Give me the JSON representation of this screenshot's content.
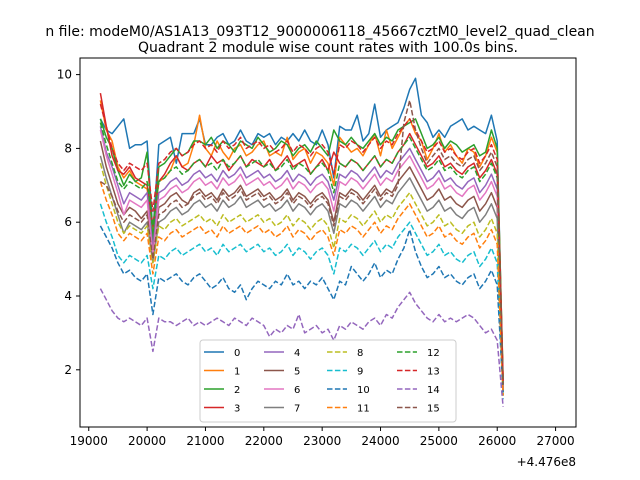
{
  "suptitle": "n file: modeM0/AS1A13_093T12_9000006118_45667cztM0_level2_quad_clean",
  "chart_data": {
    "type": "line",
    "title": "Quadrant 2 module wise count rates with 100.0s bins.",
    "xlabel": "",
    "ylabel": "",
    "x_offset_label": "+4.476e8",
    "x_start": 19200,
    "x_step": 100,
    "xlim": [
      18850,
      27350
    ],
    "ylim": [
      0.45,
      10.45
    ],
    "xticks": [
      19000,
      20000,
      21000,
      22000,
      23000,
      24000,
      25000,
      26000,
      27000
    ],
    "yticks": [
      2,
      4,
      6,
      8,
      10
    ],
    "grid": false,
    "legend": {
      "placement": "lower center",
      "ncol": 4
    },
    "series": [
      {
        "name": "0",
        "color": "#1f77b4",
        "dash": "solid",
        "values": [
          8.8,
          8.5,
          8.4,
          8.6,
          8.8,
          8.0,
          8.1,
          8.1,
          8.2,
          5.7,
          8.1,
          8.2,
          8.3,
          7.6,
          8.4,
          8.4,
          8.4,
          8.8,
          8.1,
          8.1,
          8.3,
          8.4,
          8.1,
          8.2,
          8.5,
          8.2,
          8.1,
          8.4,
          8.3,
          8.4,
          8.1,
          8.3,
          8.2,
          8.4,
          8.2,
          8.5,
          8.2,
          8.1,
          8.5,
          8.1,
          7.2,
          8.6,
          8.5,
          8.5,
          8.9,
          8.2,
          8.4,
          9.2,
          8.3,
          8.5,
          8.6,
          8.7,
          9.1,
          9.6,
          9.9,
          8.9,
          8.7,
          8.3,
          8.5,
          8.3,
          8.6,
          8.7,
          8.8,
          8.5,
          8.6,
          8.5,
          8.4,
          8.9,
          8.2,
          1.6
        ]
      },
      {
        "name": "1",
        "color": "#ff7f0e",
        "dash": "solid",
        "values": [
          9.3,
          8.5,
          8.2,
          7.5,
          7.2,
          7.4,
          7.1,
          7.0,
          6.9,
          5.8,
          7.1,
          7.2,
          7.4,
          7.8,
          7.5,
          7.6,
          8.1,
          8.9,
          8.0,
          7.8,
          8.2,
          7.9,
          7.7,
          8.0,
          8.1,
          7.8,
          7.9,
          8.1,
          8.2,
          7.8,
          7.9,
          7.8,
          8.3,
          7.7,
          7.9,
          8.0,
          7.6,
          7.9,
          7.8,
          7.6,
          7.0,
          8.3,
          8.1,
          7.9,
          8.0,
          7.8,
          8.1,
          8.4,
          7.8,
          8.5,
          8.0,
          8.3,
          8.6,
          8.8,
          8.4,
          8.2,
          7.7,
          8.0,
          8.4,
          7.9,
          8.1,
          7.8,
          7.6,
          8.0,
          7.9,
          7.5,
          7.8,
          8.3,
          7.9,
          1.8
        ]
      },
      {
        "name": "2",
        "color": "#2ca02c",
        "dash": "solid",
        "values": [
          8.8,
          8.3,
          8.0,
          7.4,
          7.0,
          7.3,
          7.1,
          7.2,
          7.9,
          5.5,
          7.5,
          7.6,
          7.8,
          8.0,
          7.8,
          7.9,
          8.2,
          8.2,
          8.1,
          8.3,
          8.0,
          8.2,
          8.1,
          7.9,
          8.2,
          8.1,
          8.0,
          8.3,
          8.1,
          7.9,
          8.0,
          8.2,
          8.1,
          7.8,
          8.0,
          8.1,
          7.9,
          8.2,
          8.0,
          7.8,
          8.5,
          8.2,
          8.1,
          8.3,
          8.1,
          8.0,
          8.2,
          8.4,
          8.1,
          8.3,
          8.2,
          8.5,
          8.6,
          8.7,
          8.8,
          8.4,
          8.0,
          8.1,
          8.3,
          8.0,
          8.2,
          8.1,
          7.9,
          8.0,
          8.1,
          7.8,
          7.9,
          8.5,
          8.0,
          1.7
        ]
      },
      {
        "name": "3",
        "color": "#d62728",
        "dash": "solid",
        "values": [
          9.5,
          8.6,
          7.8,
          7.4,
          7.3,
          7.5,
          7.2,
          7.1,
          7.0,
          5.9,
          7.1,
          7.3,
          7.6,
          7.8,
          7.5,
          7.4,
          7.6,
          7.7,
          7.5,
          7.8,
          7.6,
          7.7,
          7.4,
          7.6,
          7.8,
          7.5,
          7.7,
          7.6,
          7.5,
          7.7,
          7.4,
          7.6,
          7.8,
          7.5,
          7.6,
          7.7,
          7.3,
          7.5,
          7.7,
          7.4,
          7.9,
          7.6,
          7.5,
          7.7,
          7.6,
          7.4,
          7.6,
          7.8,
          7.5,
          7.7,
          7.6,
          7.9,
          8.1,
          8.4,
          8.1,
          7.8,
          7.5,
          7.6,
          7.8,
          7.5,
          7.6,
          7.4,
          7.3,
          7.5,
          7.6,
          7.2,
          7.4,
          7.7,
          7.3,
          1.6
        ]
      },
      {
        "name": "4",
        "color": "#9467bd",
        "dash": "solid",
        "values": [
          8.6,
          7.9,
          7.5,
          7.0,
          6.5,
          6.8,
          6.7,
          6.6,
          6.8,
          5.3,
          6.8,
          6.9,
          7.1,
          7.2,
          7.0,
          7.1,
          7.3,
          7.4,
          7.2,
          7.3,
          7.1,
          7.4,
          7.2,
          7.3,
          7.5,
          7.2,
          7.3,
          7.4,
          7.2,
          7.3,
          7.1,
          7.2,
          7.4,
          7.1,
          7.3,
          7.2,
          7.0,
          7.2,
          7.3,
          7.1,
          6.6,
          7.3,
          7.2,
          7.4,
          7.3,
          7.1,
          7.3,
          7.5,
          7.2,
          7.4,
          7.3,
          7.6,
          7.8,
          8.0,
          7.7,
          7.4,
          7.1,
          7.2,
          7.4,
          7.1,
          7.2,
          7.0,
          6.9,
          7.1,
          7.2,
          6.8,
          7.0,
          7.3,
          6.9,
          1.5
        ]
      },
      {
        "name": "5",
        "color": "#8c564b",
        "dash": "solid",
        "values": [
          8.2,
          7.5,
          7.0,
          6.5,
          6.2,
          6.4,
          6.3,
          6.1,
          6.3,
          5.2,
          6.4,
          6.5,
          6.7,
          6.8,
          6.6,
          6.5,
          6.8,
          6.9,
          6.7,
          6.8,
          6.6,
          6.9,
          6.7,
          6.8,
          7.0,
          6.7,
          6.8,
          6.9,
          6.7,
          6.8,
          6.6,
          6.7,
          6.9,
          6.6,
          6.8,
          6.7,
          6.5,
          6.7,
          6.8,
          6.6,
          6.0,
          6.8,
          6.7,
          6.9,
          6.8,
          6.6,
          6.8,
          7.0,
          6.7,
          6.9,
          6.8,
          7.1,
          7.3,
          7.5,
          7.2,
          6.9,
          6.6,
          6.7,
          6.9,
          6.6,
          6.7,
          6.5,
          6.4,
          6.6,
          6.7,
          6.3,
          6.5,
          6.8,
          6.4,
          1.4
        ]
      },
      {
        "name": "6",
        "color": "#e377c2",
        "dash": "solid",
        "values": [
          8.5,
          7.8,
          7.3,
          6.8,
          6.2,
          6.6,
          6.5,
          6.4,
          6.6,
          5.1,
          6.6,
          6.7,
          6.9,
          7.0,
          6.8,
          6.9,
          7.1,
          7.2,
          7.0,
          7.1,
          6.9,
          7.2,
          7.0,
          7.1,
          7.3,
          7.0,
          7.1,
          7.2,
          7.0,
          7.1,
          6.9,
          7.0,
          7.2,
          6.9,
          7.1,
          7.0,
          6.8,
          7.0,
          7.1,
          6.9,
          6.3,
          7.1,
          7.0,
          7.2,
          7.1,
          6.9,
          7.1,
          7.3,
          7.0,
          7.2,
          7.1,
          7.4,
          7.6,
          7.8,
          7.5,
          7.2,
          6.9,
          7.0,
          7.2,
          6.9,
          7.0,
          6.8,
          6.7,
          6.9,
          7.0,
          6.6,
          6.8,
          7.1,
          6.7,
          1.5
        ]
      },
      {
        "name": "7",
        "color": "#7f7f7f",
        "dash": "solid",
        "values": [
          7.8,
          7.2,
          6.7,
          6.2,
          5.7,
          6.0,
          5.9,
          5.8,
          6.0,
          4.9,
          6.0,
          6.1,
          6.3,
          6.4,
          6.2,
          6.3,
          6.5,
          6.6,
          6.4,
          6.5,
          6.3,
          6.6,
          6.4,
          6.5,
          6.7,
          6.4,
          6.5,
          6.6,
          6.4,
          6.5,
          6.3,
          6.4,
          6.6,
          6.3,
          6.5,
          6.4,
          6.2,
          6.4,
          6.5,
          6.3,
          5.7,
          6.5,
          6.4,
          6.6,
          6.5,
          6.3,
          6.5,
          6.7,
          6.4,
          6.6,
          6.5,
          6.8,
          7.0,
          7.2,
          6.9,
          6.6,
          6.3,
          6.4,
          6.6,
          6.3,
          6.4,
          6.2,
          6.1,
          6.3,
          6.4,
          6.0,
          6.2,
          6.5,
          6.1,
          1.4
        ]
      },
      {
        "name": "8",
        "color": "#bcbd22",
        "dash": "dashed",
        "values": [
          7.6,
          7.0,
          6.5,
          6.0,
          5.7,
          5.9,
          5.8,
          5.7,
          5.9,
          4.9,
          5.9,
          5.8,
          6.0,
          6.1,
          5.9,
          6.0,
          6.1,
          6.2,
          6.0,
          6.1,
          5.9,
          6.2,
          6.0,
          6.1,
          6.2,
          6.0,
          6.1,
          6.2,
          6.0,
          6.1,
          5.9,
          6.0,
          6.2,
          5.9,
          6.1,
          6.0,
          5.8,
          6.0,
          6.1,
          5.9,
          5.3,
          6.1,
          6.0,
          6.2,
          6.1,
          5.9,
          6.1,
          6.3,
          6.0,
          6.2,
          6.1,
          6.4,
          6.6,
          6.8,
          6.5,
          6.2,
          5.9,
          6.0,
          6.2,
          5.9,
          6.0,
          5.8,
          5.7,
          5.9,
          6.0,
          5.6,
          5.8,
          6.1,
          5.7,
          1.3
        ]
      },
      {
        "name": "9",
        "color": "#17becf",
        "dash": "dashed",
        "values": [
          6.5,
          6.0,
          5.6,
          5.1,
          4.9,
          5.1,
          5.0,
          4.9,
          5.1,
          4.2,
          5.1,
          5.0,
          5.2,
          5.3,
          5.1,
          5.2,
          5.3,
          5.4,
          5.2,
          5.3,
          5.1,
          5.4,
          5.2,
          5.3,
          5.4,
          5.2,
          5.3,
          5.4,
          5.2,
          5.3,
          5.1,
          5.2,
          5.4,
          5.1,
          5.3,
          5.2,
          5.0,
          5.2,
          5.3,
          5.1,
          4.6,
          5.3,
          5.2,
          5.4,
          5.3,
          5.1,
          5.3,
          5.5,
          5.2,
          5.4,
          5.3,
          5.6,
          5.8,
          6.0,
          5.7,
          5.4,
          5.1,
          5.2,
          5.4,
          5.1,
          5.2,
          5.0,
          4.9,
          5.1,
          5.2,
          4.8,
          5.0,
          5.3,
          4.9,
          1.2
        ]
      },
      {
        "name": "10",
        "color": "#1f77b4",
        "dash": "dashed",
        "values": [
          5.9,
          5.6,
          5.3,
          4.9,
          4.6,
          4.7,
          4.5,
          4.4,
          4.6,
          3.5,
          4.5,
          4.4,
          4.5,
          4.6,
          4.4,
          4.3,
          4.5,
          4.6,
          4.4,
          4.2,
          4.3,
          4.5,
          4.2,
          4.1,
          4.3,
          3.9,
          4.2,
          4.4,
          4.3,
          4.2,
          4.4,
          4.3,
          4.6,
          4.3,
          4.4,
          4.2,
          4.4,
          4.3,
          4.5,
          4.2,
          3.9,
          4.4,
          4.3,
          4.8,
          4.6,
          4.4,
          4.6,
          4.9,
          4.5,
          4.7,
          4.6,
          5.0,
          5.3,
          5.8,
          5.2,
          4.8,
          4.5,
          4.6,
          4.8,
          4.5,
          4.6,
          4.4,
          4.3,
          4.5,
          4.6,
          4.2,
          4.4,
          4.7,
          4.3,
          1.4
        ]
      },
      {
        "name": "11",
        "color": "#ff7f0e",
        "dash": "dashed",
        "values": [
          7.1,
          6.6,
          6.2,
          5.7,
          5.5,
          5.7,
          5.6,
          5.5,
          5.7,
          4.6,
          5.6,
          5.5,
          5.7,
          5.8,
          5.6,
          5.7,
          5.8,
          5.9,
          5.7,
          5.8,
          5.6,
          5.9,
          5.7,
          5.8,
          5.9,
          5.7,
          5.8,
          5.9,
          5.7,
          5.8,
          5.6,
          5.7,
          5.9,
          5.6,
          5.8,
          5.7,
          5.5,
          5.7,
          5.8,
          5.6,
          5.1,
          5.8,
          5.7,
          5.9,
          5.8,
          5.6,
          5.8,
          6.0,
          5.7,
          5.9,
          5.8,
          6.1,
          6.3,
          6.5,
          6.2,
          5.9,
          5.6,
          5.7,
          5.9,
          5.6,
          5.7,
          5.5,
          5.4,
          5.6,
          5.7,
          5.3,
          5.5,
          5.8,
          5.4,
          1.3
        ]
      },
      {
        "name": "12",
        "color": "#2ca02c",
        "dash": "dashed",
        "values": [
          8.7,
          8.1,
          7.6,
          7.1,
          6.9,
          7.1,
          7.0,
          6.9,
          7.1,
          5.9,
          7.1,
          7.2,
          7.4,
          7.5,
          7.3,
          7.4,
          7.6,
          7.7,
          7.5,
          7.6,
          7.4,
          7.7,
          7.5,
          7.6,
          7.8,
          7.5,
          7.6,
          7.7,
          7.5,
          7.6,
          7.4,
          7.5,
          7.7,
          7.4,
          7.6,
          7.5,
          7.3,
          7.5,
          7.6,
          7.4,
          6.8,
          7.6,
          7.5,
          7.7,
          7.6,
          7.4,
          7.6,
          7.8,
          7.5,
          7.7,
          7.6,
          7.9,
          8.1,
          8.3,
          8.0,
          7.7,
          7.4,
          7.5,
          7.7,
          7.4,
          7.5,
          7.3,
          7.2,
          7.4,
          7.5,
          7.1,
          7.3,
          7.6,
          7.2,
          1.6
        ]
      },
      {
        "name": "13",
        "color": "#d62728",
        "dash": "dashed",
        "values": [
          9.2,
          8.6,
          8.0,
          7.6,
          7.4,
          7.6,
          7.5,
          7.4,
          7.6,
          6.3,
          7.6,
          7.7,
          7.9,
          8.0,
          7.8,
          7.9,
          8.1,
          8.2,
          8.0,
          8.1,
          7.9,
          8.2,
          8.0,
          8.1,
          8.3,
          8.0,
          8.1,
          8.2,
          8.0,
          8.1,
          7.9,
          8.0,
          8.2,
          7.9,
          8.1,
          8.0,
          7.8,
          8.0,
          8.1,
          7.9,
          7.3,
          8.1,
          8.0,
          8.2,
          8.1,
          7.9,
          8.1,
          8.3,
          8.0,
          8.2,
          8.1,
          8.4,
          8.6,
          8.8,
          8.5,
          8.2,
          7.9,
          8.0,
          8.2,
          7.9,
          8.0,
          7.8,
          7.7,
          7.9,
          8.0,
          7.6,
          7.8,
          8.1,
          7.7,
          1.7
        ]
      },
      {
        "name": "14",
        "color": "#9467bd",
        "dash": "dashed",
        "values": [
          4.2,
          3.9,
          3.6,
          3.4,
          3.3,
          3.4,
          3.3,
          3.2,
          3.4,
          2.5,
          3.4,
          3.3,
          3.3,
          3.2,
          3.3,
          3.4,
          3.2,
          3.3,
          3.2,
          3.3,
          3.4,
          3.3,
          3.2,
          3.4,
          3.3,
          3.2,
          3.4,
          3.3,
          3.2,
          2.9,
          3.1,
          3.0,
          3.2,
          3.1,
          3.5,
          3.0,
          3.1,
          3.2,
          3.0,
          3.1,
          2.8,
          3.2,
          3.1,
          3.3,
          3.2,
          3.1,
          3.3,
          3.4,
          3.2,
          3.5,
          3.4,
          3.7,
          3.9,
          4.1,
          3.8,
          3.6,
          3.4,
          3.3,
          3.5,
          3.3,
          3.4,
          3.3,
          3.4,
          3.5,
          3.4,
          3.2,
          3.0,
          3.1,
          2.8,
          1.0
        ]
      },
      {
        "name": "15",
        "color": "#8c564b",
        "dash": "dashed",
        "values": [
          7.1,
          7.0,
          6.7,
          6.3,
          6.0,
          6.2,
          6.1,
          6.0,
          6.2,
          5.0,
          6.2,
          6.3,
          6.5,
          6.6,
          6.4,
          6.5,
          6.7,
          6.8,
          6.6,
          6.7,
          6.5,
          6.8,
          6.6,
          6.7,
          6.9,
          6.6,
          6.7,
          6.8,
          6.6,
          6.7,
          6.5,
          6.6,
          6.8,
          6.5,
          6.7,
          6.6,
          6.4,
          6.6,
          6.7,
          6.5,
          5.9,
          6.7,
          6.6,
          6.8,
          6.7,
          6.5,
          6.7,
          6.9,
          6.6,
          6.8,
          6.7,
          7.0,
          8.7,
          9.3,
          8.5,
          8.0,
          7.6,
          7.8,
          8.0,
          7.7,
          7.8,
          7.6,
          7.5,
          7.7,
          7.8,
          7.4,
          7.6,
          7.9,
          7.5,
          1.6
        ]
      }
    ]
  }
}
